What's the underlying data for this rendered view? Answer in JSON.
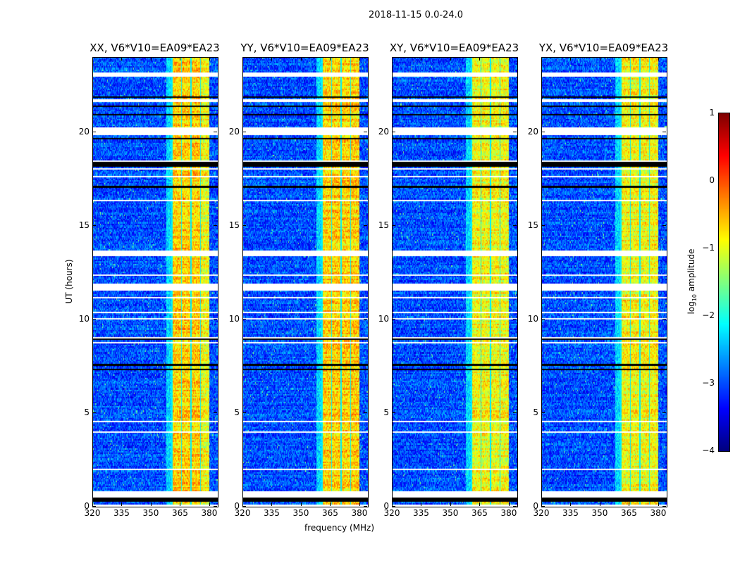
{
  "chart_data": {
    "type": "heatmap",
    "title": "2018-11-15 0.0-24.0",
    "xlabel": "frequency (MHz)",
    "ylabel": "UT (hours)",
    "xlim": [
      320,
      384
    ],
    "ylim": [
      0,
      24
    ],
    "xticks": [
      "320",
      "335",
      "350",
      "365",
      "380"
    ],
    "yticks": [
      "0",
      "5",
      "10",
      "15",
      "20"
    ],
    "panels": [
      {
        "title": "XX, V6*V10=EA09*EA23"
      },
      {
        "title": "YY, V6*V10=EA09*EA23"
      },
      {
        "title": "XY, V6*V10=EA09*EA23"
      },
      {
        "title": "YX, V6*V10=EA09*EA23"
      }
    ],
    "colorbar": {
      "label_main": "log",
      "label_sub": "10",
      "label_rest": " amplitude",
      "range": [
        -4,
        1
      ],
      "ticks": [
        "−4",
        "−3",
        "−2",
        "−1",
        "0",
        "1"
      ],
      "colormap": "jet"
    },
    "features": {
      "background_log_amplitude": -3,
      "rfi_band_mhz": [
        360,
        380
      ],
      "rfi_band_log_amplitude": -0.5,
      "flagged_hours": [
        [
          23.0,
          23.2
        ],
        [
          19.85,
          20.2
        ],
        [
          13.4,
          13.7
        ],
        [
          11.5,
          11.8
        ],
        [
          0.5,
          0.8
        ]
      ]
    }
  }
}
